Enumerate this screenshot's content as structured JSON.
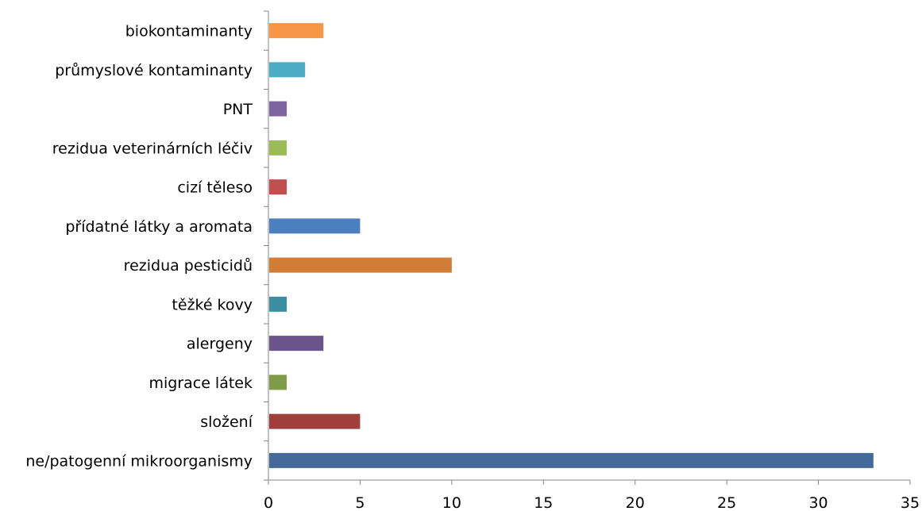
{
  "chart_data": {
    "type": "bar",
    "orientation": "horizontal",
    "categories": [
      "ne/patogenní mikroorganismy",
      "složení",
      "migrace látek",
      "alergeny",
      "těžké kovy",
      "rezidua pesticidů",
      "přídatné látky a aromata",
      "cizí těleso",
      "rezidua veterinárních léčiv",
      "PNT",
      "průmyslové kontaminanty",
      "biokontaminanty"
    ],
    "values": [
      33,
      5,
      1,
      3,
      1,
      10,
      5,
      1,
      1,
      1,
      2,
      3
    ],
    "colors": [
      "#44699b",
      "#9e3f3c",
      "#7f9b47",
      "#69548b",
      "#3b8ea2",
      "#d07d38",
      "#4c7fc0",
      "#c0504d",
      "#9bbb59",
      "#8064a2",
      "#4bacc6",
      "#f79646"
    ],
    "xlim": [
      0,
      35
    ],
    "xticks": [
      0,
      5,
      10,
      15,
      20,
      25,
      30,
      35
    ],
    "grid": false,
    "legend": "none",
    "title": "",
    "xlabel": "",
    "ylabel": ""
  }
}
